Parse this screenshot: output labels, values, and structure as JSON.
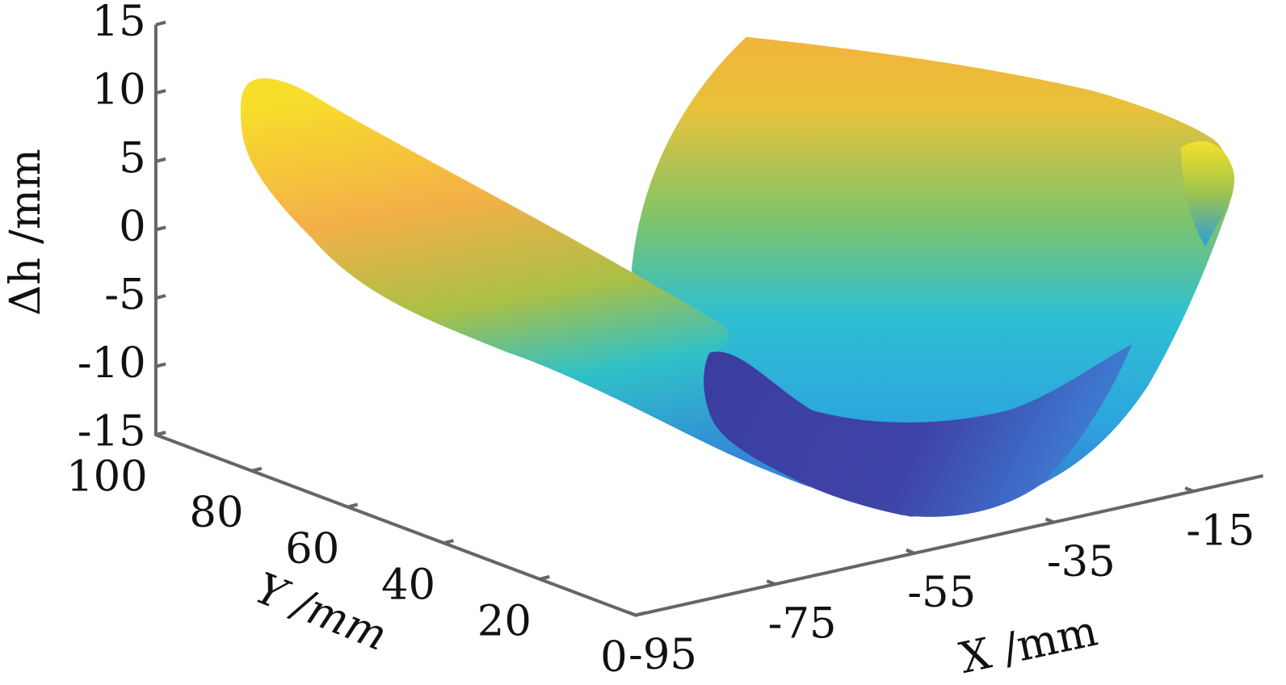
{
  "chart_data": {
    "type": "surface",
    "xlabel": "X /mm",
    "ylabel": "Y /mm",
    "zlabel": "Δh /mm",
    "xlim": [
      -95,
      -5
    ],
    "xticks": [
      -95,
      -75,
      -55,
      -35,
      -15
    ],
    "ylim": [
      0,
      100
    ],
    "yticks": [
      0,
      20,
      40,
      60,
      80,
      100
    ],
    "zlim": [
      -15,
      15
    ],
    "zticks": [
      -15,
      -10,
      -5,
      0,
      5,
      10,
      15
    ],
    "colormap": "parula"
  }
}
